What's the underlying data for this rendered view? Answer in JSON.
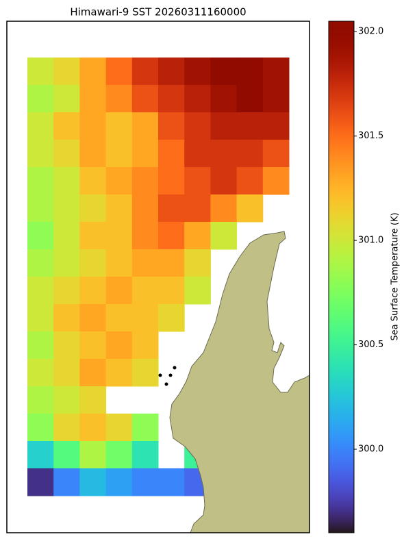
{
  "chart_data": {
    "type": "heatmap",
    "title": "Himawari-9 SST 20260311160000",
    "colormap": "turbo",
    "zlabel": "Sea Surface Temperature (K)",
    "zlim": [
      299.6,
      302.05
    ],
    "zticks": [
      {
        "value": 300,
        "label": "300.0"
      },
      {
        "value": 300.5,
        "label": "300.5"
      },
      {
        "value": 301,
        "label": "301.0"
      },
      {
        "value": 301.5,
        "label": "301.5"
      },
      {
        "value": 302,
        "label": "302.0"
      }
    ],
    "values": [
      [
        301.0,
        301.1,
        301.3,
        301.5,
        301.7,
        301.8,
        301.9,
        302.0,
        302.0,
        301.9
      ],
      [
        300.9,
        301.0,
        301.3,
        301.4,
        301.6,
        301.7,
        301.8,
        301.9,
        302.0,
        301.9
      ],
      [
        301.0,
        301.2,
        301.3,
        301.2,
        301.3,
        301.6,
        301.7,
        301.8,
        301.8,
        301.8
      ],
      [
        301.0,
        301.1,
        301.3,
        301.2,
        301.3,
        301.5,
        301.7,
        301.7,
        301.7,
        301.6
      ],
      [
        300.9,
        301.0,
        301.2,
        301.3,
        301.4,
        301.5,
        301.6,
        301.7,
        301.6,
        301.4
      ],
      [
        300.9,
        301.0,
        301.1,
        301.2,
        301.4,
        301.6,
        301.6,
        301.4,
        301.2,
        null
      ],
      [
        300.8,
        301.0,
        301.2,
        301.2,
        301.4,
        301.5,
        301.3,
        301.0,
        null,
        null
      ],
      [
        300.9,
        301.0,
        301.1,
        301.2,
        301.3,
        301.3,
        301.1,
        null,
        null,
        null
      ],
      [
        301.0,
        301.1,
        301.2,
        301.3,
        301.2,
        301.2,
        301.0,
        null,
        null,
        null
      ],
      [
        301.0,
        301.2,
        301.3,
        301.2,
        301.2,
        301.1,
        null,
        null,
        null,
        null
      ],
      [
        300.9,
        301.1,
        301.2,
        301.3,
        301.2,
        null,
        null,
        null,
        null,
        null
      ],
      [
        301.0,
        301.1,
        301.3,
        301.2,
        301.1,
        null,
        null,
        null,
        null,
        null
      ],
      [
        300.9,
        301.0,
        301.1,
        null,
        null,
        null,
        null,
        null,
        null,
        null
      ],
      [
        300.8,
        301.1,
        301.2,
        301.1,
        300.8,
        null,
        null,
        null,
        null,
        null
      ],
      [
        300.3,
        300.6,
        300.9,
        300.7,
        300.4,
        null,
        300.5,
        null,
        null,
        null
      ],
      [
        299.7,
        300.0,
        300.2,
        300.1,
        300.0,
        300.0,
        299.9,
        null,
        null,
        null
      ]
    ]
  }
}
